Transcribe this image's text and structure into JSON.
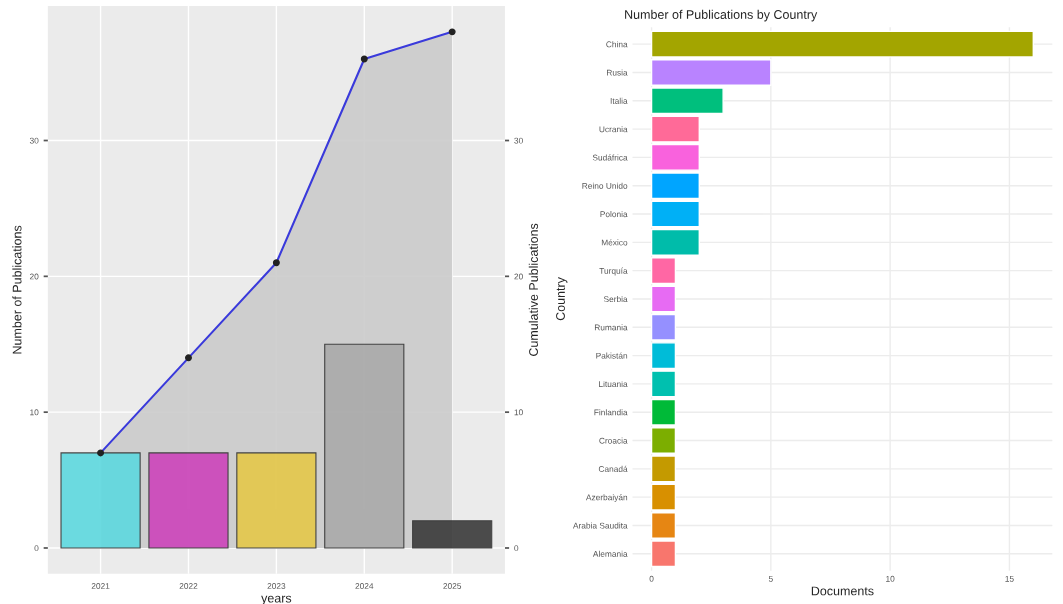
{
  "chart_data": [
    {
      "type": "bar",
      "xlabel": "years",
      "ylabel": "Number of Publications",
      "y2label": "Cumulative Publications",
      "categories": [
        "2021",
        "2022",
        "2023",
        "2024",
        "2025"
      ],
      "series": [
        {
          "type": "bar",
          "colors": [
            "#5ed9df",
            "#cc44bb",
            "#e5c84a",
            "#aaaaaa",
            "#3a3a3a"
          ],
          "values": [
            7,
            7,
            7,
            15,
            2
          ]
        },
        {
          "type": "area",
          "axis": "y2",
          "color": "#3a3adb",
          "marker": "circle",
          "values": [
            7,
            14,
            21,
            36,
            38
          ]
        }
      ],
      "ylim": [
        -1.9,
        39.9
      ],
      "yticks": [
        0,
        10,
        20,
        30
      ],
      "y2lim": [
        -1.9,
        39.9
      ],
      "y2ticks": [
        0,
        10,
        20,
        30
      ],
      "grid": true
    },
    {
      "type": "bar",
      "orientation": "horizontal",
      "title": "Number of Publications by Country",
      "xlabel": "Documents",
      "ylabel": "Country",
      "categories": [
        "China",
        "Rusia",
        "Italia",
        "Ucrania",
        "Sudáfrica",
        "Reino Unido",
        "Polonia",
        "México",
        "Turquía",
        "Serbia",
        "Rumania",
        "Pakistán",
        "Lituania",
        "Finlandia",
        "Croacia",
        "Canadá",
        "Azerbaiyán",
        "Arabia Saudita",
        "Alemania"
      ],
      "values": [
        16,
        5,
        3,
        2,
        2,
        2,
        2,
        2,
        1,
        1,
        1,
        1,
        1,
        1,
        1,
        1,
        1,
        1,
        1
      ],
      "colors": [
        "#a3a500",
        "#b983ff",
        "#00bf7d",
        "#ff6a98",
        "#f962dd",
        "#00a5ff",
        "#00b0f6",
        "#00bcaa",
        "#ff67a4",
        "#e76bf3",
        "#9590ff",
        "#00bcd8",
        "#00c0af",
        "#00ba38",
        "#7cae00",
        "#c49a00",
        "#d89000",
        "#e68613",
        "#f8766d"
      ],
      "xlim": [
        -0.8,
        16.8
      ],
      "xticks": [
        0,
        5,
        10,
        15
      ],
      "grid": true
    }
  ]
}
